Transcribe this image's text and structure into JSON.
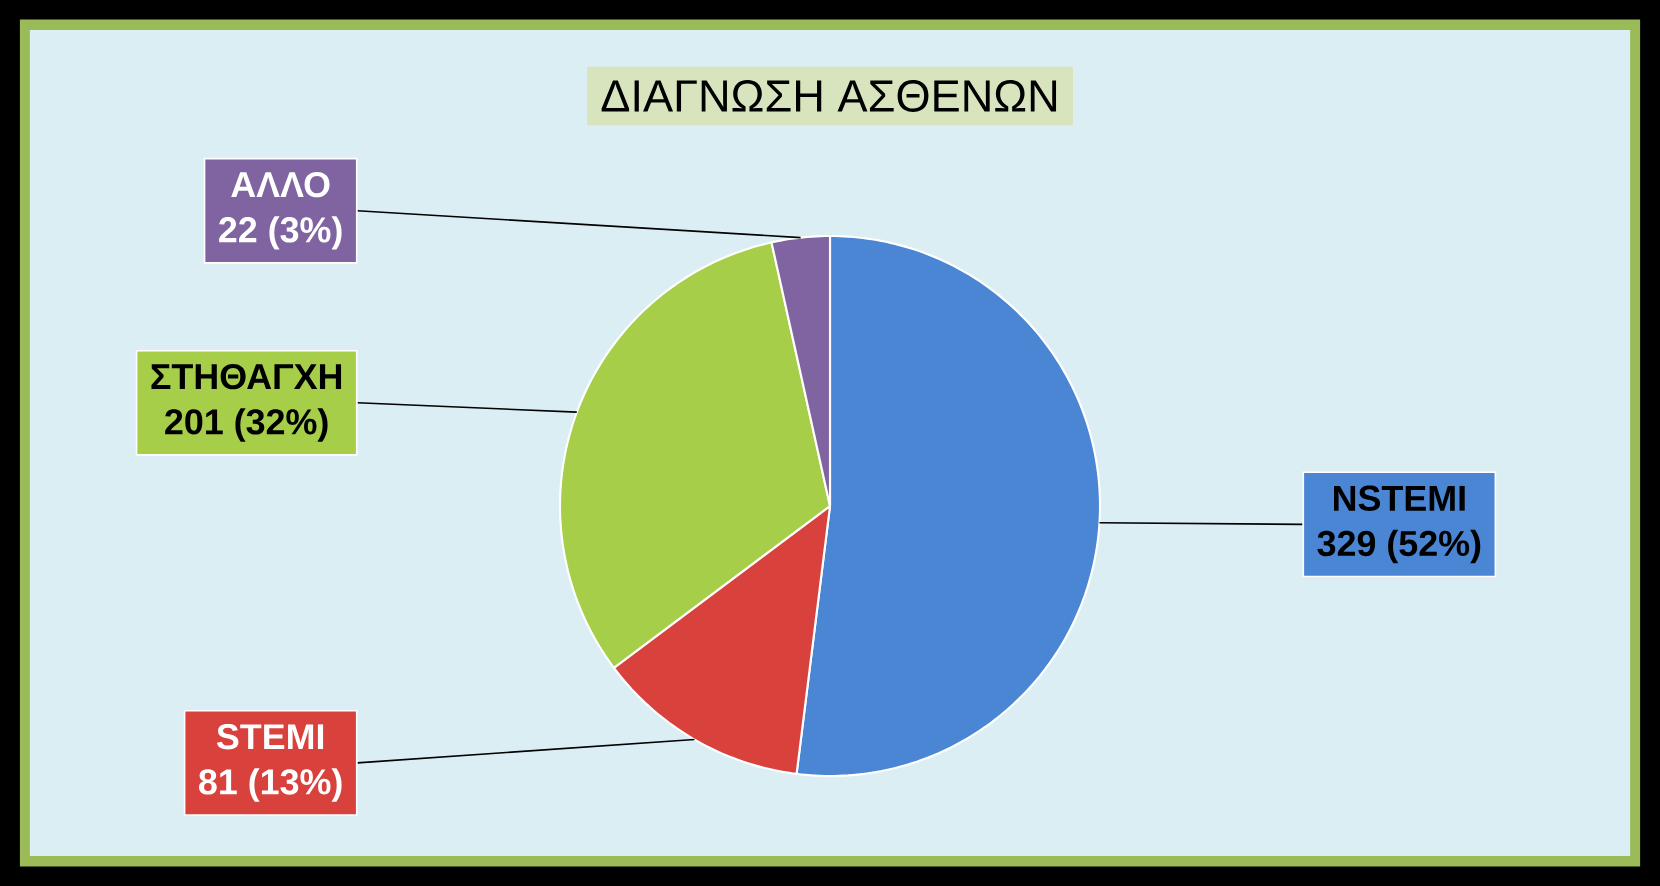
{
  "chart_data": {
    "type": "pie",
    "title": "ΔΙΑΓΝΩΣΗ ΑΣΘΕΝΩΝ",
    "categories": [
      "NSTEMI",
      "STEMI",
      "ΣΤΗΘΑΓΧΗ",
      "ΑΛΛΟ"
    ],
    "values": [
      329,
      81,
      201,
      22
    ],
    "colors": [
      "#4a86d4",
      "#d9413c",
      "#a6ce48",
      "#8064a2"
    ],
    "value_labels": [
      "329 (52%)",
      "81 (13%)",
      "201 (32%)",
      "22 (3%)"
    ]
  }
}
